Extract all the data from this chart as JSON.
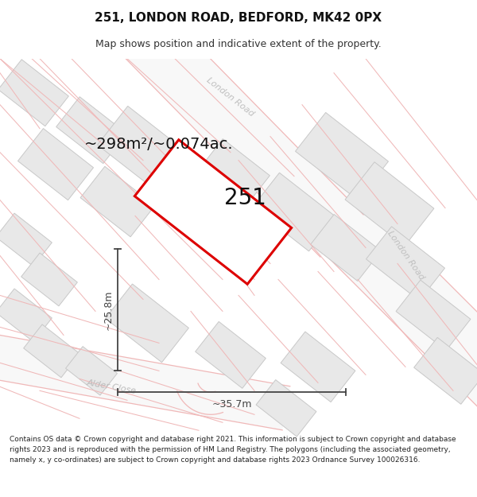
{
  "title": "251, LONDON ROAD, BEDFORD, MK42 0PX",
  "subtitle": "Map shows position and indicative extent of the property.",
  "footer": "Contains OS data © Crown copyright and database right 2021. This information is subject to Crown copyright and database rights 2023 and is reproduced with the permission of HM Land Registry. The polygons (including the associated geometry, namely x, y co-ordinates) are subject to Crown copyright and database rights 2023 Ordnance Survey 100026316.",
  "area_label": "~298m²/~0.074ac.",
  "width_label": "~35.7m",
  "height_label": "~25.8m",
  "number_label": "251",
  "map_bg": "#ffffff",
  "building_fill": "#e8e8e8",
  "building_edge": "#c8c8c8",
  "road_line_color": "#f0b8b8",
  "road_fill": "#f5f5f5",
  "plot_edge": "#dd0000",
  "dim_color": "#444444",
  "road_label_color": "#c0c0c0",
  "street_label_color": "#bbbbbb",
  "title_fontsize": 11,
  "subtitle_fontsize": 9,
  "footer_fontsize": 6.5,
  "area_fontsize": 14,
  "number_fontsize": 20,
  "dim_fontsize": 9
}
